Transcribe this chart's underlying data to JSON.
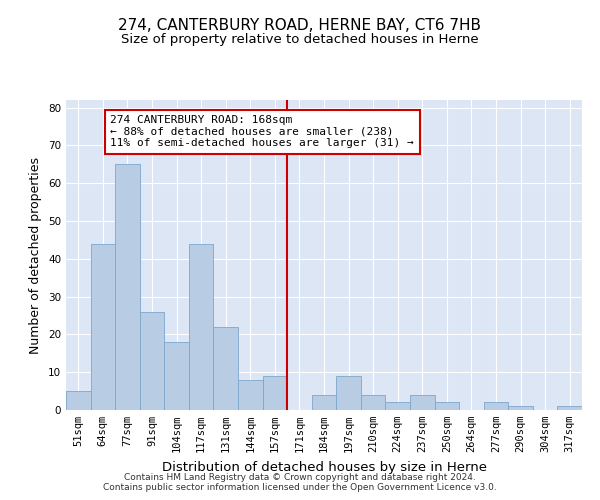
{
  "title": "274, CANTERBURY ROAD, HERNE BAY, CT6 7HB",
  "subtitle": "Size of property relative to detached houses in Herne",
  "xlabel": "Distribution of detached houses by size in Herne",
  "ylabel": "Number of detached properties",
  "categories": [
    "51sqm",
    "64sqm",
    "77sqm",
    "91sqm",
    "104sqm",
    "117sqm",
    "131sqm",
    "144sqm",
    "157sqm",
    "171sqm",
    "184sqm",
    "197sqm",
    "210sqm",
    "224sqm",
    "237sqm",
    "250sqm",
    "264sqm",
    "277sqm",
    "290sqm",
    "304sqm",
    "317sqm"
  ],
  "values": [
    5,
    44,
    65,
    26,
    18,
    44,
    22,
    8,
    9,
    0,
    4,
    9,
    4,
    2,
    4,
    2,
    0,
    2,
    1,
    0,
    1
  ],
  "bar_color": "#b8cce4",
  "bar_edge_color": "#7da6cc",
  "background_color": "#dce6f5",
  "grid_color": "#ffffff",
  "annotation_text": "274 CANTERBURY ROAD: 168sqm\n← 88% of detached houses are smaller (238)\n11% of semi-detached houses are larger (31) →",
  "annotation_box_color": "#ffffff",
  "annotation_box_edge": "#cc0000",
  "vline_x": 8.5,
  "vline_color": "#cc0000",
  "ylim": [
    0,
    82
  ],
  "yticks": [
    0,
    10,
    20,
    30,
    40,
    50,
    60,
    70,
    80
  ],
  "footnote1": "Contains HM Land Registry data © Crown copyright and database right 2024.",
  "footnote2": "Contains public sector information licensed under the Open Government Licence v3.0.",
  "title_fontsize": 11,
  "subtitle_fontsize": 9.5,
  "ylabel_fontsize": 9,
  "xlabel_fontsize": 9.5,
  "tick_fontsize": 7.5,
  "annotation_fontsize": 8,
  "footnote_fontsize": 6.5
}
